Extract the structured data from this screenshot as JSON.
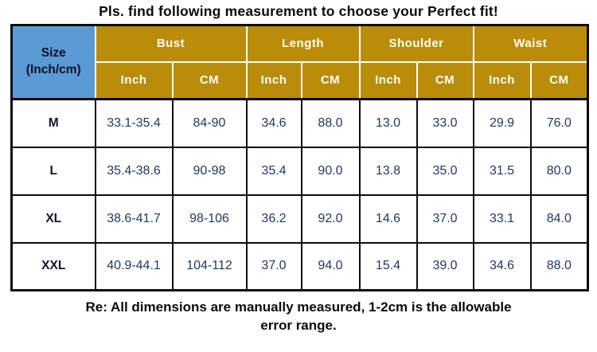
{
  "title": "Pls. find following measurement to choose your Perfect fit!",
  "colors": {
    "header_gold": "#BB8C09",
    "size_blue": "#5B9BD5",
    "value_text": "#1F3864",
    "border": "#0B0B0B",
    "header_text": "#FFFFFF"
  },
  "table": {
    "size_header": {
      "line1": "Size",
      "line2": "(Inch/cm)"
    },
    "groups": [
      {
        "label": "Bust"
      },
      {
        "label": "Length"
      },
      {
        "label": "Shoulder"
      },
      {
        "label": "Waist"
      }
    ],
    "units": [
      "Inch",
      "CM",
      "Inch",
      "CM",
      "Inch",
      "CM",
      "Inch",
      "CM"
    ],
    "rows": [
      {
        "size": "M",
        "values": [
          "33.1-35.4",
          "84-90",
          "34.6",
          "88.0",
          "13.0",
          "33.0",
          "29.9",
          "76.0"
        ]
      },
      {
        "size": "L",
        "values": [
          "35.4-38.6",
          "90-98",
          "35.4",
          "90.0",
          "13.8",
          "35.0",
          "31.5",
          "80.0"
        ]
      },
      {
        "size": "XL",
        "values": [
          "38.6-41.7",
          "98-106",
          "36.2",
          "92.0",
          "14.6",
          "37.0",
          "33.1",
          "84.0"
        ]
      },
      {
        "size": "XXL",
        "values": [
          "40.9-44.1",
          "104-112",
          "37.0",
          "94.0",
          "15.4",
          "39.0",
          "34.6",
          "88.0"
        ]
      }
    ]
  },
  "footer": {
    "lines": [
      "Re: All dimensions are manually measured, 1-2cm is the allowable",
      "error range."
    ]
  }
}
